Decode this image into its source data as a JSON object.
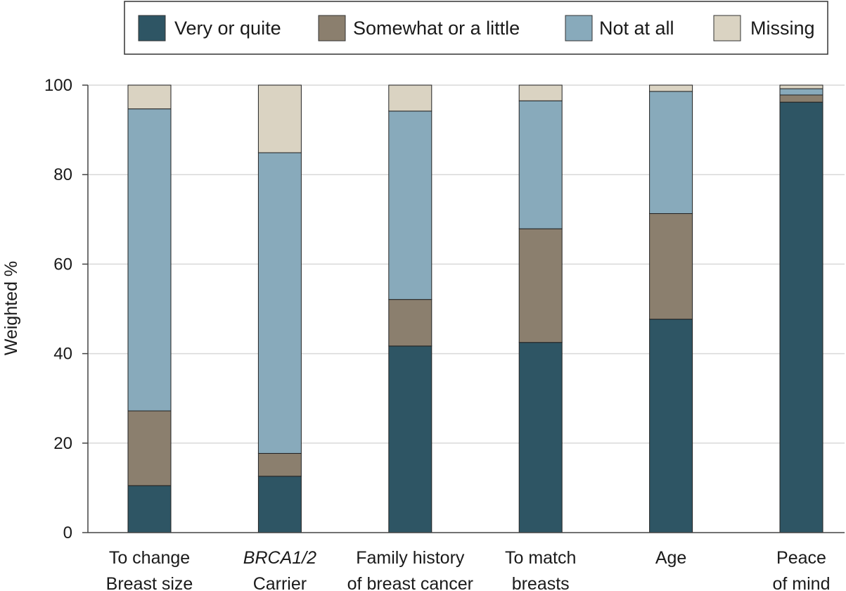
{
  "chart_data": {
    "type": "bar",
    "stacked": true,
    "categories": [
      {
        "line1": "To change",
        "line2": "Breast size",
        "line1_italic": false
      },
      {
        "line1": "BRCA1/2",
        "line2": "Carrier",
        "line1_italic": true
      },
      {
        "line1": "Family history",
        "line2": "of breast cancer",
        "line1_italic": false
      },
      {
        "line1": "To match",
        "line2": "breasts",
        "line1_italic": false
      },
      {
        "line1": "Age",
        "line2": "",
        "line1_italic": false
      },
      {
        "line1": "Peace",
        "line2": "of mind",
        "line1_italic": false
      }
    ],
    "series": [
      {
        "name": "Very or quite",
        "color": "#2e5564",
        "values": [
          10.5,
          12.6,
          41.7,
          42.5,
          47.7,
          96.2
        ]
      },
      {
        "name": "Somewhat or a little",
        "color": "#8b7f6e",
        "values": [
          16.7,
          5.1,
          10.4,
          25.4,
          23.6,
          1.6
        ]
      },
      {
        "name": "Not at all",
        "color": "#88aabb",
        "values": [
          67.5,
          67.2,
          42.1,
          28.6,
          27.3,
          1.4
        ]
      },
      {
        "name": "Missing",
        "color": "#dad3c2",
        "values": [
          5.3,
          15.1,
          5.8,
          3.5,
          1.4,
          0.8
        ]
      }
    ],
    "title": "",
    "xlabel": "",
    "ylabel": "Weighted %",
    "ylim": [
      0,
      100
    ],
    "yticks": [
      0,
      20,
      40,
      60,
      80,
      100
    ],
    "grid": true,
    "legend_position": "top"
  }
}
